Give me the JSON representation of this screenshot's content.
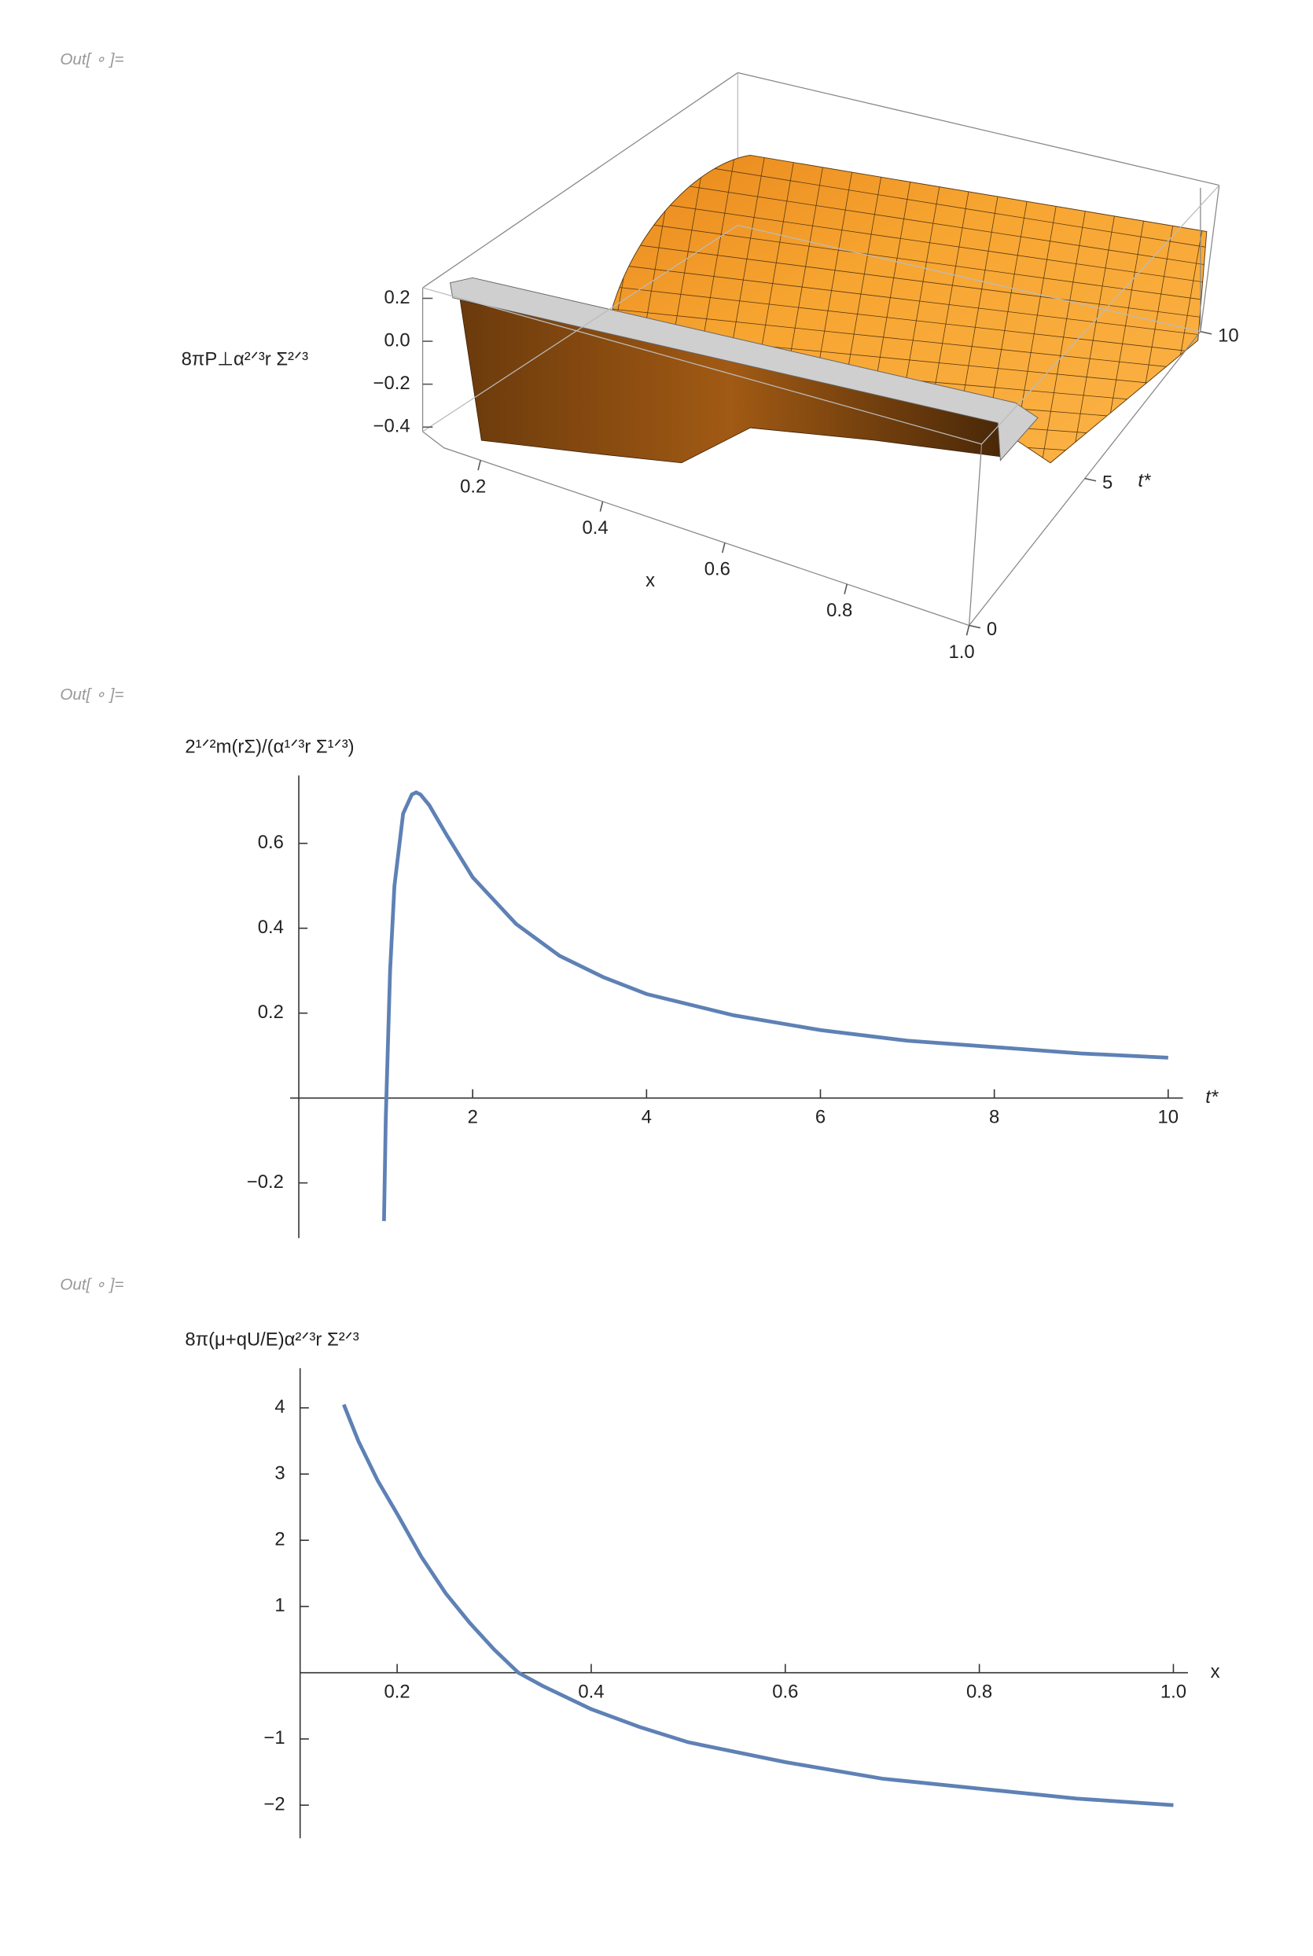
{
  "prompts": [
    "Out[ ∘ ]=",
    "Out[ ∘ ]=",
    "Out[ ∘ ]="
  ],
  "chart_data": [
    {
      "type": "surface3d",
      "color": "#f7a531",
      "zlabel": "8πP⊥α²ᐟ³r Σ²ᐟ³",
      "xlabel": "x",
      "ylabel": "t*",
      "xlim": [
        0.14,
        1.0
      ],
      "xticks": [
        0.2,
        0.4,
        0.6,
        0.8,
        {
          "value": 1,
          "label": "1.0"
        }
      ],
      "ylim": [
        0,
        10
      ],
      "yticks": [
        0,
        5,
        10
      ],
      "zlim": [
        -0.45,
        0.22
      ],
      "zticks": [
        0.2,
        {
          "value": 0,
          "label": "0.0"
        },
        {
          "value": -0.2,
          "label": "−0.2"
        },
        {
          "value": -0.4,
          "label": "−0.4"
        }
      ]
    },
    {
      "type": "line",
      "color": "#5e81b5",
      "ylabel": "2¹ᐟ²m(rΣ)/(α¹ᐟ³r Σ¹ᐟ³)",
      "xlabel": "t*",
      "x": [
        0.98,
        1.0,
        1.05,
        1.1,
        1.2,
        1.3,
        1.35,
        1.4,
        1.5,
        1.7,
        2,
        2.5,
        3,
        3.5,
        4,
        5,
        6,
        7,
        8,
        9,
        10
      ],
      "values": [
        -0.29,
        -0.05,
        0.3,
        0.5,
        0.67,
        0.715,
        0.72,
        0.715,
        0.69,
        0.62,
        0.52,
        0.41,
        0.335,
        0.285,
        0.245,
        0.195,
        0.16,
        0.135,
        0.12,
        0.105,
        0.095
      ],
      "xlim": [
        -0.1,
        10.17
      ],
      "xticks": [
        2,
        4,
        6,
        8,
        10
      ],
      "ylim": [
        -0.33,
        0.76
      ],
      "yticks": [
        {
          "value": -0.2,
          "label": "−0.2"
        },
        0.2,
        0.4,
        0.6
      ]
    },
    {
      "type": "line",
      "color": "#5e81b5",
      "ylabel": "8π(μ+qU/E)α²ᐟ³r Σ²ᐟ³",
      "xlabel": "x",
      "x": [
        0.145,
        0.16,
        0.18,
        0.2,
        0.225,
        0.25,
        0.275,
        0.3,
        0.325,
        0.35,
        0.4,
        0.45,
        0.5,
        0.6,
        0.7,
        0.8,
        0.9,
        1.0
      ],
      "values": [
        4.05,
        3.5,
        2.9,
        2.4,
        1.75,
        1.2,
        0.75,
        0.35,
        0.0,
        -0.2,
        -0.55,
        -0.82,
        -1.05,
        -1.35,
        -1.6,
        -1.75,
        -1.9,
        -2.0
      ],
      "xlim": [
        0.1,
        1.015
      ],
      "xticks": [
        0.2,
        0.4,
        0.6,
        0.8,
        {
          "value": 1,
          "label": "1.0"
        }
      ],
      "ylim": [
        -2.5,
        4.6
      ],
      "yticks": [
        {
          "value": -2,
          "label": "−2"
        },
        {
          "value": -1,
          "label": "−1"
        },
        1,
        2,
        3,
        4
      ]
    }
  ]
}
